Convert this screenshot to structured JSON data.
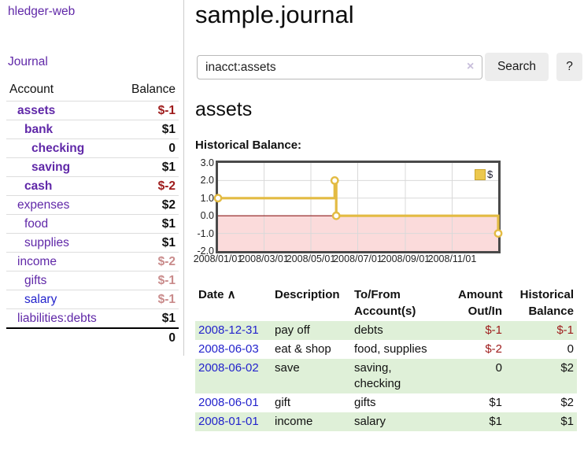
{
  "brand": "hledger-web",
  "nav": {
    "journal": "Journal"
  },
  "sidebar": {
    "header": {
      "account": "Account",
      "balance": "Balance"
    },
    "accounts": [
      {
        "name": "assets",
        "depth": 1,
        "balance": "$-1",
        "bold": true,
        "balance_tone": "neg"
      },
      {
        "name": "bank",
        "depth": 2,
        "balance": "$1",
        "bold": true,
        "balance_tone": "pos"
      },
      {
        "name": "checking",
        "depth": 3,
        "balance": "0",
        "bold": true,
        "balance_tone": "pos"
      },
      {
        "name": "saving",
        "depth": 3,
        "balance": "$1",
        "bold": true,
        "balance_tone": "pos"
      },
      {
        "name": "cash",
        "depth": 2,
        "balance": "$-2",
        "bold": true,
        "balance_tone": "neg"
      },
      {
        "name": "expenses",
        "depth": 1,
        "balance": "$2",
        "bold": false,
        "balance_tone": "pos"
      },
      {
        "name": "food",
        "depth": 2,
        "balance": "$1",
        "bold": false,
        "balance_tone": "pos"
      },
      {
        "name": "supplies",
        "depth": 2,
        "balance": "$1",
        "bold": false,
        "balance_tone": "pos"
      },
      {
        "name": "income",
        "depth": 1,
        "balance": "$-2",
        "bold": false,
        "balance_tone": "neg-muted"
      },
      {
        "name": "gifts",
        "depth": 2,
        "balance": "$-1",
        "bold": false,
        "balance_tone": "neg-muted"
      },
      {
        "name": "salary",
        "depth": 2,
        "balance": "$-1",
        "bold": false,
        "balance_tone": "neg-muted",
        "link_tone": "blue"
      },
      {
        "name": "liabilities:debts",
        "depth": 1,
        "balance": "$1",
        "bold": false,
        "balance_tone": "pos"
      }
    ],
    "total": "0"
  },
  "header": {
    "title": "sample.journal"
  },
  "search": {
    "value": "inacct:assets",
    "clear_icon": "×",
    "search_button": "Search",
    "help_button": "?"
  },
  "account_view": {
    "heading": "assets",
    "chart_title": "Historical Balance:"
  },
  "chart_data": {
    "type": "line",
    "step": true,
    "title": "Historical Balance:",
    "legend_position": "top-right",
    "series": [
      {
        "name": "$",
        "points": [
          [
            "2008-01-01",
            1
          ],
          [
            "2008-06-01",
            2
          ],
          [
            "2008-06-03",
            0
          ],
          [
            "2008-12-31",
            -1
          ]
        ]
      }
    ],
    "xrange": [
      "2008-01-01",
      "2008-12-31"
    ],
    "ylim": [
      -2,
      3
    ],
    "yticks": [
      3.0,
      2.0,
      1.0,
      0.0,
      -1.0,
      -2.0
    ],
    "xticks": [
      "2008/01/01",
      "2008/03/01",
      "2008/05/01",
      "2008/07/01",
      "2008/09/01",
      "2008/11/01"
    ],
    "grid": true,
    "colors": {
      "line": "#e3bb43",
      "marker_fill": "#ffffff",
      "negative_area": "#fbdbdb",
      "zero_line": "#8c1a1a",
      "border": "#4a4a4a",
      "legend_swatch": "#ecc84e"
    }
  },
  "register": {
    "sort_icon": "∧",
    "columns": [
      {
        "lines": [
          "Date"
        ],
        "align": "left",
        "sortable": true
      },
      {
        "lines": [
          "Description"
        ],
        "align": "left",
        "sortable": false
      },
      {
        "lines": [
          "To/From",
          "Account(s)"
        ],
        "align": "left",
        "sortable": false
      },
      {
        "lines": [
          "Amount",
          "Out/In"
        ],
        "align": "right",
        "sortable": false
      },
      {
        "lines": [
          "Historical",
          "Balance"
        ],
        "align": "right",
        "sortable": false
      }
    ],
    "rows": [
      {
        "date": "2008-12-31",
        "description": "pay off",
        "accounts": "debts",
        "amount": "$-1",
        "balance": "$-1"
      },
      {
        "date": "2008-06-03",
        "description": "eat & shop",
        "accounts": "food, supplies",
        "amount": "$-2",
        "balance": "0"
      },
      {
        "date": "2008-06-02",
        "description": "save",
        "accounts": "saving,\nchecking",
        "amount": "0",
        "balance": "$2"
      },
      {
        "date": "2008-06-01",
        "description": "gift",
        "accounts": "gifts",
        "amount": "$1",
        "balance": "$2"
      },
      {
        "date": "2008-01-01",
        "description": "income",
        "accounts": "salary",
        "amount": "$1",
        "balance": "$1"
      }
    ]
  },
  "colors": {
    "link_purple": "#6028a8",
    "link_blue": "#2323cc",
    "negative": "#9e1b1b",
    "negative_muted": "#c98b8b",
    "stripe_green": "#dff0d8"
  }
}
